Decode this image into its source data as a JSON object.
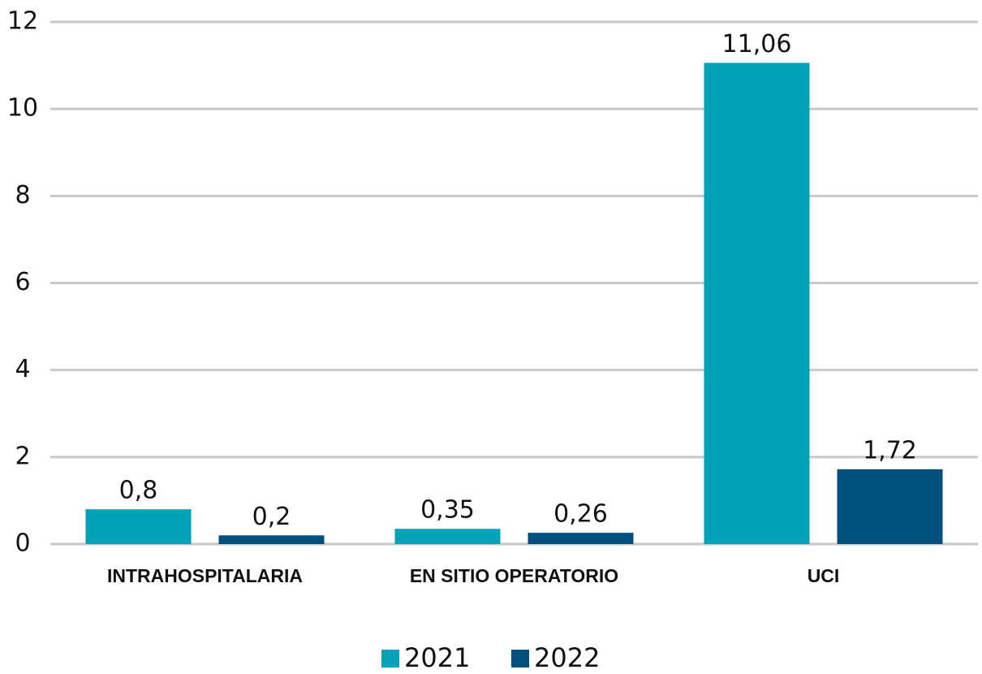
{
  "chart_data": {
    "type": "bar",
    "categories": [
      "INTRAHOSPITALARIA",
      "EN SITIO OPERATORIO",
      "UCI"
    ],
    "series": [
      {
        "name": "2021",
        "color": "#00a3b9",
        "values": [
          0.8,
          0.35,
          11.06
        ],
        "value_labels": [
          "0,8",
          "0,35",
          "11,06"
        ]
      },
      {
        "name": "2022",
        "color": "#005080",
        "values": [
          0.2,
          0.26,
          1.72
        ],
        "value_labels": [
          "0,2",
          "0,26",
          "1,72"
        ]
      }
    ],
    "ylim": [
      0,
      12
    ],
    "yticks": [
      0,
      2,
      4,
      6,
      8,
      10,
      12
    ],
    "grid": true,
    "legend": "bottom"
  }
}
